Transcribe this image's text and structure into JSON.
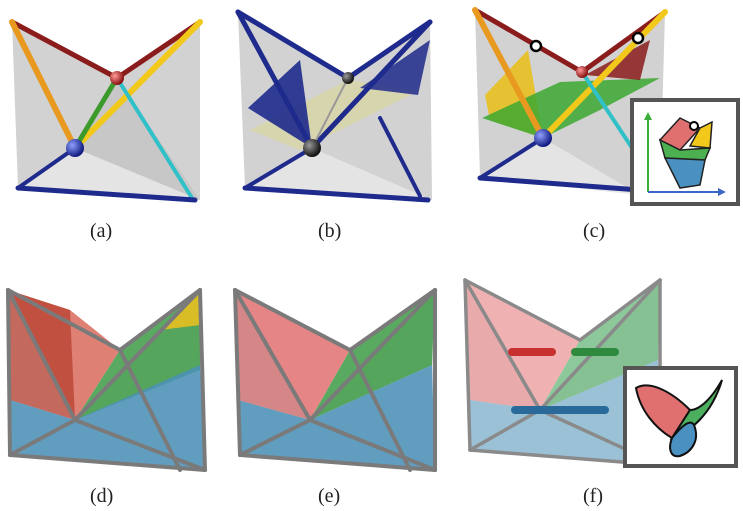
{
  "panels": [
    {
      "id": "a",
      "caption": "(a)"
    },
    {
      "id": "b",
      "caption": "(b)"
    },
    {
      "id": "c",
      "caption": "(c)"
    },
    {
      "id": "d",
      "caption": "(d)"
    },
    {
      "id": "e",
      "caption": "(e)"
    },
    {
      "id": "f",
      "caption": "(f)"
    }
  ],
  "colors": {
    "panel_bg": "#d4d4d4",
    "dark_red": "#8b1c1c",
    "orange": "#e89a20",
    "yellow": "#f2c81a",
    "green": "#3c9a2c",
    "cyan": "#30c0c8",
    "navy": "#1e2a8c",
    "frame_gray": "#7a7a7a",
    "face_red": "#e07878",
    "face_green": "#4caf50",
    "face_blue": "#4a90c0"
  }
}
